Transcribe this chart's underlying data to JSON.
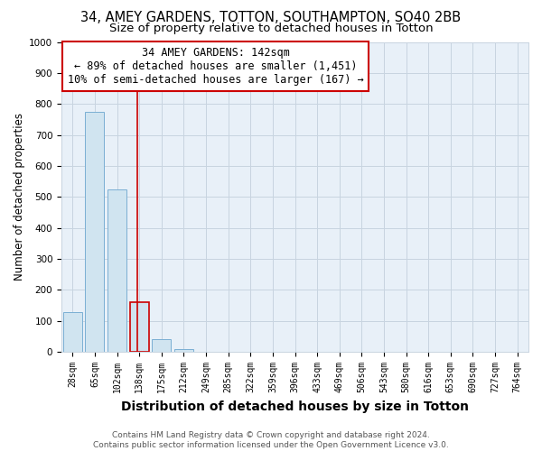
{
  "title": "34, AMEY GARDENS, TOTTON, SOUTHAMPTON, SO40 2BB",
  "subtitle": "Size of property relative to detached houses in Totton",
  "xlabel": "Distribution of detached houses by size in Totton",
  "ylabel": "Number of detached properties",
  "categories": [
    "28sqm",
    "65sqm",
    "102sqm",
    "138sqm",
    "175sqm",
    "212sqm",
    "249sqm",
    "285sqm",
    "322sqm",
    "359sqm",
    "396sqm",
    "433sqm",
    "469sqm",
    "506sqm",
    "543sqm",
    "580sqm",
    "616sqm",
    "653sqm",
    "690sqm",
    "727sqm",
    "764sqm"
  ],
  "values": [
    130,
    775,
    525,
    160,
    40,
    10,
    0,
    0,
    0,
    0,
    0,
    0,
    0,
    0,
    0,
    0,
    0,
    0,
    0,
    0,
    0
  ],
  "bar_color": "#d0e4f0",
  "bar_edge_color": "#7bafd4",
  "highlight_bar_index": 3,
  "highlight_bar_edge_color": "#cc0000",
  "highlight_line_color": "#cc0000",
  "annotation_box_text": "34 AMEY GARDENS: 142sqm\n← 89% of detached houses are smaller (1,451)\n10% of semi-detached houses are larger (167) →",
  "annotation_box_color": "#ffffff",
  "annotation_box_edge_color": "#cc0000",
  "ylim": [
    0,
    1000
  ],
  "yticks": [
    0,
    100,
    200,
    300,
    400,
    500,
    600,
    700,
    800,
    900,
    1000
  ],
  "grid_color": "#c8d4e0",
  "background_color": "#ffffff",
  "plot_bg_color": "#e8f0f8",
  "footer": "Contains HM Land Registry data © Crown copyright and database right 2024.\nContains public sector information licensed under the Open Government Licence v3.0.",
  "title_fontsize": 10.5,
  "subtitle_fontsize": 9.5,
  "xlabel_fontsize": 10,
  "ylabel_fontsize": 8.5,
  "tick_fontsize": 7,
  "footer_fontsize": 6.5,
  "ann_fontsize": 8.5
}
